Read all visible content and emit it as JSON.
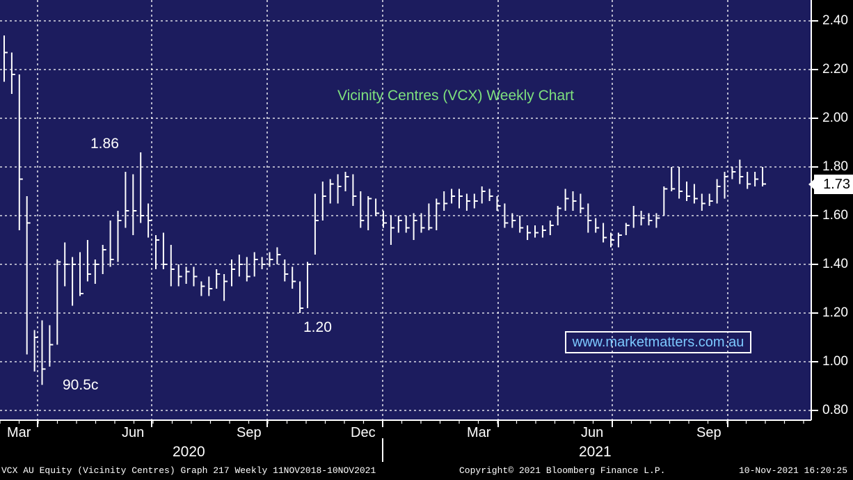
{
  "chart_data": {
    "type": "ohlc",
    "title": "Vicinity Centres (VCX) Weekly Chart",
    "ylim": [
      0.8,
      2.45
    ],
    "y_ticks": [
      "2.40",
      "2.20",
      "2.00",
      "1.80",
      "1.60",
      "1.40",
      "1.20",
      "1.00",
      "0.80"
    ],
    "y_tick_values": [
      2.4,
      2.2,
      2.0,
      1.8,
      1.6,
      1.4,
      1.2,
      1.0,
      0.8
    ],
    "x_ticks": [
      "Mar",
      "Jun",
      "Sep",
      "Dec",
      "Mar",
      "Jun",
      "Sep"
    ],
    "years": [
      "2020",
      "2021"
    ],
    "grid": true,
    "last_price": "1.73",
    "annotations": [
      "1.86",
      "90.5c",
      "1.20"
    ],
    "series": [
      {
        "bars": [
          {
            "h": 2.34,
            "l": 2.15,
            "c": 2.27
          },
          {
            "h": 2.27,
            "l": 2.1,
            "c": 2.18
          },
          {
            "h": 2.18,
            "l": 1.54,
            "c": 1.75
          },
          {
            "h": 1.68,
            "l": 1.03,
            "c": 1.57
          },
          {
            "h": 1.13,
            "l": 0.96,
            "c": 1.1
          },
          {
            "h": 1.17,
            "l": 0.905,
            "c": 0.97
          },
          {
            "h": 1.15,
            "l": 0.98,
            "c": 1.07
          },
          {
            "h": 1.42,
            "l": 1.07,
            "c": 1.41
          },
          {
            "h": 1.49,
            "l": 1.31,
            "c": 1.4
          },
          {
            "h": 1.43,
            "l": 1.23,
            "c": 1.4
          },
          {
            "h": 1.45,
            "l": 1.27,
            "c": 1.28
          },
          {
            "h": 1.5,
            "l": 1.33,
            "c": 1.36
          },
          {
            "h": 1.42,
            "l": 1.32,
            "c": 1.4
          },
          {
            "h": 1.48,
            "l": 1.36,
            "c": 1.46
          },
          {
            "h": 1.58,
            "l": 1.39,
            "c": 1.42
          },
          {
            "h": 1.62,
            "l": 1.41,
            "c": 1.58
          },
          {
            "h": 1.78,
            "l": 1.55,
            "c": 1.62
          },
          {
            "h": 1.77,
            "l": 1.52,
            "c": 1.62
          },
          {
            "h": 1.86,
            "l": 1.57,
            "c": 1.6
          },
          {
            "h": 1.65,
            "l": 1.51,
            "c": 1.58
          },
          {
            "h": 1.52,
            "l": 1.38,
            "c": 1.5
          },
          {
            "h": 1.53,
            "l": 1.38,
            "c": 1.4
          },
          {
            "h": 1.48,
            "l": 1.31,
            "c": 1.38
          },
          {
            "h": 1.4,
            "l": 1.31,
            "c": 1.35
          },
          {
            "h": 1.39,
            "l": 1.32,
            "c": 1.37
          },
          {
            "h": 1.39,
            "l": 1.31,
            "c": 1.35
          },
          {
            "h": 1.33,
            "l": 1.27,
            "c": 1.31
          },
          {
            "h": 1.35,
            "l": 1.27,
            "c": 1.3
          },
          {
            "h": 1.38,
            "l": 1.3,
            "c": 1.36
          },
          {
            "h": 1.36,
            "l": 1.25,
            "c": 1.33
          },
          {
            "h": 1.42,
            "l": 1.31,
            "c": 1.38
          },
          {
            "h": 1.44,
            "l": 1.35,
            "c": 1.4
          },
          {
            "h": 1.43,
            "l": 1.33,
            "c": 1.35
          },
          {
            "h": 1.45,
            "l": 1.35,
            "c": 1.42
          },
          {
            "h": 1.43,
            "l": 1.38,
            "c": 1.4
          },
          {
            "h": 1.45,
            "l": 1.39,
            "c": 1.42
          },
          {
            "h": 1.47,
            "l": 1.4,
            "c": 1.44
          },
          {
            "h": 1.42,
            "l": 1.33,
            "c": 1.36
          },
          {
            "h": 1.39,
            "l": 1.3,
            "c": 1.33
          },
          {
            "h": 1.33,
            "l": 1.2,
            "c": 1.22
          },
          {
            "h": 1.41,
            "l": 1.22,
            "c": 1.4
          },
          {
            "h": 1.69,
            "l": 1.44,
            "c": 1.58
          },
          {
            "h": 1.74,
            "l": 1.58,
            "c": 1.68
          },
          {
            "h": 1.75,
            "l": 1.65,
            "c": 1.73
          },
          {
            "h": 1.77,
            "l": 1.65,
            "c": 1.72
          },
          {
            "h": 1.78,
            "l": 1.7,
            "c": 1.76
          },
          {
            "h": 1.77,
            "l": 1.64,
            "c": 1.68
          },
          {
            "h": 1.7,
            "l": 1.55,
            "c": 1.58
          },
          {
            "h": 1.68,
            "l": 1.54,
            "c": 1.67
          },
          {
            "h": 1.67,
            "l": 1.6,
            "c": 1.61
          },
          {
            "h": 1.62,
            "l": 1.55,
            "c": 1.57
          },
          {
            "h": 1.6,
            "l": 1.48,
            "c": 1.55
          },
          {
            "h": 1.6,
            "l": 1.53,
            "c": 1.58
          },
          {
            "h": 1.6,
            "l": 1.53,
            "c": 1.55
          },
          {
            "h": 1.61,
            "l": 1.5,
            "c": 1.58
          },
          {
            "h": 1.61,
            "l": 1.53,
            "c": 1.55
          },
          {
            "h": 1.65,
            "l": 1.54,
            "c": 1.55
          },
          {
            "h": 1.67,
            "l": 1.54,
            "c": 1.65
          },
          {
            "h": 1.7,
            "l": 1.62,
            "c": 1.65
          },
          {
            "h": 1.71,
            "l": 1.65,
            "c": 1.68
          },
          {
            "h": 1.71,
            "l": 1.63,
            "c": 1.68
          },
          {
            "h": 1.69,
            "l": 1.62,
            "c": 1.66
          },
          {
            "h": 1.69,
            "l": 1.63,
            "c": 1.66
          },
          {
            "h": 1.72,
            "l": 1.65,
            "c": 1.7
          },
          {
            "h": 1.71,
            "l": 1.66,
            "c": 1.68
          },
          {
            "h": 1.68,
            "l": 1.62,
            "c": 1.64
          },
          {
            "h": 1.65,
            "l": 1.55,
            "c": 1.57
          },
          {
            "h": 1.61,
            "l": 1.55,
            "c": 1.58
          },
          {
            "h": 1.6,
            "l": 1.53,
            "c": 1.55
          },
          {
            "h": 1.56,
            "l": 1.5,
            "c": 1.53
          },
          {
            "h": 1.56,
            "l": 1.51,
            "c": 1.53
          },
          {
            "h": 1.56,
            "l": 1.51,
            "c": 1.54
          },
          {
            "h": 1.58,
            "l": 1.52,
            "c": 1.56
          },
          {
            "h": 1.64,
            "l": 1.56,
            "c": 1.63
          },
          {
            "h": 1.71,
            "l": 1.62,
            "c": 1.67
          },
          {
            "h": 1.7,
            "l": 1.62,
            "c": 1.66
          },
          {
            "h": 1.69,
            "l": 1.61,
            "c": 1.63
          },
          {
            "h": 1.65,
            "l": 1.53,
            "c": 1.58
          },
          {
            "h": 1.59,
            "l": 1.53,
            "c": 1.55
          },
          {
            "h": 1.57,
            "l": 1.49,
            "c": 1.51
          },
          {
            "h": 1.53,
            "l": 1.47,
            "c": 1.5
          },
          {
            "h": 1.53,
            "l": 1.47,
            "c": 1.52
          },
          {
            "h": 1.57,
            "l": 1.52,
            "c": 1.56
          },
          {
            "h": 1.64,
            "l": 1.55,
            "c": 1.6
          },
          {
            "h": 1.62,
            "l": 1.56,
            "c": 1.59
          },
          {
            "h": 1.61,
            "l": 1.56,
            "c": 1.58
          },
          {
            "h": 1.61,
            "l": 1.55,
            "c": 1.59
          },
          {
            "h": 1.72,
            "l": 1.6,
            "c": 1.71
          },
          {
            "h": 1.8,
            "l": 1.7,
            "c": 1.71
          },
          {
            "h": 1.8,
            "l": 1.67,
            "c": 1.7
          },
          {
            "h": 1.74,
            "l": 1.66,
            "c": 1.68
          },
          {
            "h": 1.73,
            "l": 1.65,
            "c": 1.67
          },
          {
            "h": 1.69,
            "l": 1.62,
            "c": 1.65
          },
          {
            "h": 1.69,
            "l": 1.64,
            "c": 1.66
          },
          {
            "h": 1.75,
            "l": 1.65,
            "c": 1.72
          },
          {
            "h": 1.78,
            "l": 1.67,
            "c": 1.76
          },
          {
            "h": 1.8,
            "l": 1.75,
            "c": 1.78
          },
          {
            "h": 1.83,
            "l": 1.73,
            "c": 1.76
          },
          {
            "h": 1.78,
            "l": 1.71,
            "c": 1.73
          },
          {
            "h": 1.78,
            "l": 1.72,
            "c": 1.75
          },
          {
            "h": 1.8,
            "l": 1.72,
            "c": 1.73
          }
        ]
      }
    ]
  },
  "labels": {
    "ann_high": "1.86",
    "ann_low": "90.5c",
    "ann_mid": "1.20",
    "watermark": "www.marketmatters.com.au",
    "footer_left": "VCX AU Equity (Vicinity Centres) Graph 217  Weekly 11NOV2018-10NOV2021",
    "footer_mid": "Copyright© 2021 Bloomberg Finance L.P.",
    "footer_right": "10-Nov-2021 16:20:25"
  },
  "colors": {
    "background": "#1c1c5e",
    "axis_panel": "#000000",
    "bars": "#ffffff",
    "grid": "#ffffff",
    "title": "#7ee07e",
    "watermark": "#7cc8ff"
  }
}
